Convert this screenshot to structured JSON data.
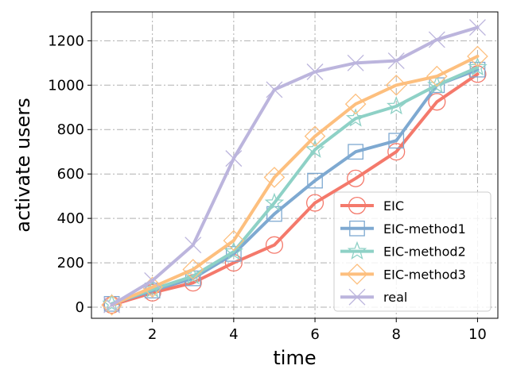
{
  "chart_data": {
    "type": "line",
    "xlabel": "time",
    "ylabel": "activate users",
    "xlim": [
      0.5,
      10.5
    ],
    "ylim": [
      -50,
      1330
    ],
    "xticks": [
      2,
      4,
      6,
      8,
      10
    ],
    "yticks": [
      0,
      200,
      400,
      600,
      800,
      1000,
      1200
    ],
    "grid": true,
    "grid_style": "dash-dot",
    "legend_position": "lower-right",
    "x": [
      1,
      2,
      3,
      4,
      5,
      6,
      7,
      8,
      9,
      10
    ],
    "series": [
      {
        "name": "EIC",
        "color": "#f4796b",
        "marker": "circle",
        "values": [
          10,
          65,
          110,
          200,
          280,
          470,
          580,
          700,
          925,
          1050
        ]
      },
      {
        "name": "EIC-method1",
        "color": "#7ea9d1",
        "marker": "square",
        "values": [
          15,
          75,
          130,
          240,
          420,
          570,
          700,
          750,
          1000,
          1070
        ]
      },
      {
        "name": "EIC-method2",
        "color": "#8ed1c6",
        "marker": "star",
        "values": [
          15,
          80,
          140,
          250,
          470,
          710,
          850,
          905,
          1000,
          1080
        ]
      },
      {
        "name": "EIC-method3",
        "color": "#fdbf7e",
        "marker": "diamond",
        "values": [
          10,
          90,
          170,
          300,
          585,
          770,
          915,
          1000,
          1040,
          1130
        ]
      },
      {
        "name": "real",
        "color": "#bcb5dd",
        "marker": "x",
        "values": [
          10,
          120,
          280,
          670,
          980,
          1060,
          1100,
          1110,
          1205,
          1260
        ]
      }
    ]
  }
}
